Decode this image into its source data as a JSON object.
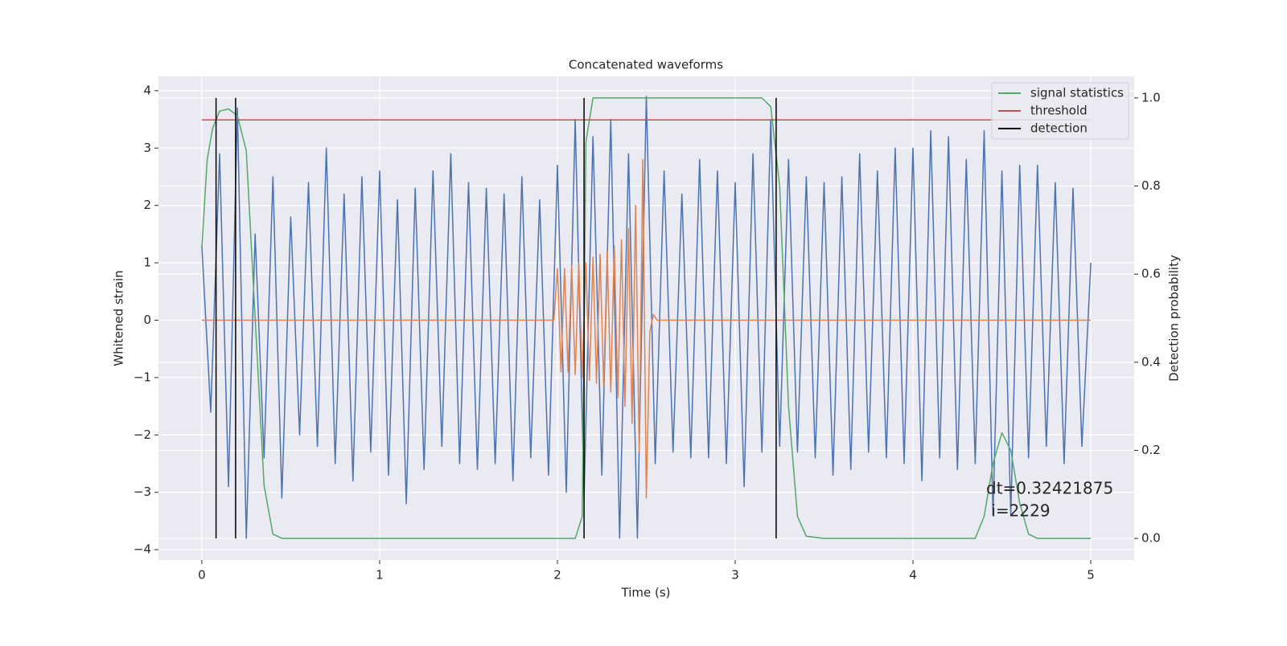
{
  "chart_data": {
    "type": "line",
    "title": "Concatenated waveforms",
    "xlabel": "Time (s)",
    "ylabel": "Whitened strain",
    "y2label": "Detection probability",
    "xlim": [
      -0.244,
      5.244
    ],
    "ylim": [
      -4.18,
      4.25
    ],
    "y2lim": [
      -0.049,
      1.049
    ],
    "xticks": [
      0,
      1,
      2,
      3,
      4,
      5
    ],
    "yticks": [
      {
        "value": -4,
        "label": "−4"
      },
      {
        "value": -3,
        "label": "−3"
      },
      {
        "value": -2,
        "label": "−2"
      },
      {
        "value": -1,
        "label": "−1"
      },
      0,
      1,
      2,
      3,
      4
    ],
    "y2ticks": [
      {
        "value": 0,
        "label": "0.0"
      },
      0.2,
      0.4,
      0.6,
      0.8,
      {
        "value": 1,
        "label": "1.0"
      }
    ],
    "grid": true,
    "background": "#eaeaf2",
    "legend_loc": "upper right",
    "annotations": [
      "dt=0.32421875",
      " i=2229"
    ],
    "series": [
      {
        "color": "#4c72b0",
        "x": [
          0,
          0.05,
          0.1,
          0.15,
          0.2,
          0.25,
          0.3,
          0.35,
          0.4,
          0.45,
          0.5,
          0.55,
          0.6,
          0.65,
          0.7,
          0.75,
          0.8,
          0.85,
          0.9,
          0.95,
          1.0,
          1.05,
          1.1,
          1.15,
          1.2,
          1.25,
          1.3,
          1.35,
          1.4,
          1.45,
          1.5,
          1.55,
          1.6,
          1.65,
          1.7,
          1.75,
          1.8,
          1.85,
          1.9,
          1.95,
          2.0,
          2.05,
          2.1,
          2.15,
          2.2,
          2.25,
          2.3,
          2.35,
          2.4,
          2.45,
          2.5,
          2.55,
          2.6,
          2.65,
          2.7,
          2.75,
          2.8,
          2.85,
          2.9,
          2.95,
          3.0,
          3.05,
          3.1,
          3.15,
          3.2,
          3.25,
          3.3,
          3.35,
          3.4,
          3.45,
          3.5,
          3.55,
          3.6,
          3.65,
          3.7,
          3.75,
          3.8,
          3.85,
          3.9,
          3.95,
          4.0,
          4.05,
          4.1,
          4.15,
          4.2,
          4.25,
          4.3,
          4.35,
          4.4,
          4.45,
          4.5,
          4.55,
          4.6,
          4.65,
          4.7,
          4.75,
          4.8,
          4.85,
          4.9,
          4.95,
          5.0
        ],
        "values": [
          1.3,
          -1.6,
          2.9,
          -2.9,
          3.7,
          -3.8,
          1.5,
          -2.4,
          2.5,
          -3.1,
          1.8,
          -2.0,
          2.4,
          -2.2,
          3.0,
          -2.5,
          2.2,
          -2.8,
          2.5,
          -2.3,
          2.6,
          -2.7,
          2.1,
          -3.2,
          2.3,
          -2.6,
          2.6,
          -2.2,
          2.9,
          -2.5,
          2.4,
          -2.6,
          2.3,
          -2.5,
          2.2,
          -2.8,
          2.5,
          -2.4,
          2.1,
          -2.7,
          2.7,
          -3.0,
          3.5,
          -3.1,
          3.2,
          -2.7,
          3.5,
          -3.8,
          2.9,
          -3.8,
          3.9,
          -2.5,
          2.6,
          -2.3,
          2.2,
          -2.4,
          2.8,
          -2.4,
          2.6,
          -2.5,
          2.4,
          -2.9,
          2.9,
          -2.3,
          3.5,
          -2.2,
          2.8,
          -2.3,
          2.5,
          -2.4,
          2.4,
          -2.7,
          2.5,
          -2.6,
          2.9,
          -2.3,
          2.6,
          -2.4,
          3.0,
          -2.5,
          3.0,
          -2.8,
          3.3,
          -2.4,
          3.2,
          -2.6,
          2.8,
          -2.5,
          3.3,
          -3.4,
          2.6,
          -3.4,
          2.7,
          -2.4,
          2.7,
          -2.2,
          2.4,
          -2.5,
          2.3,
          -2.2,
          1.0
        ]
      },
      {
        "color": "#dd8452",
        "x": [
          0,
          1.98,
          2.0,
          2.02,
          2.04,
          2.06,
          2.08,
          2.1,
          2.12,
          2.14,
          2.16,
          2.18,
          2.2,
          2.22,
          2.24,
          2.26,
          2.28,
          2.3,
          2.32,
          2.34,
          2.36,
          2.38,
          2.4,
          2.42,
          2.44,
          2.46,
          2.48,
          2.5,
          2.52,
          2.54,
          2.56,
          5.0
        ],
        "values": [
          0,
          0,
          0.9,
          -0.9,
          0.9,
          -0.9,
          0.95,
          -0.95,
          1.0,
          -1.0,
          1.0,
          -1.05,
          1.1,
          -1.1,
          1.15,
          -1.15,
          1.2,
          -1.25,
          1.3,
          -1.35,
          1.4,
          -1.5,
          1.6,
          -1.8,
          2.0,
          -2.3,
          2.8,
          -3.1,
          -0.2,
          0.1,
          0,
          0
        ]
      },
      {
        "name": "signal statistics",
        "color": "#55a868",
        "axis": "y2",
        "x": [
          0,
          0.03,
          0.06,
          0.1,
          0.15,
          0.2,
          0.25,
          0.3,
          0.35,
          0.4,
          0.45,
          2.1,
          2.14,
          2.16,
          2.2,
          3.15,
          3.2,
          3.25,
          3.3,
          3.35,
          3.4,
          3.5,
          4.35,
          4.4,
          4.45,
          4.5,
          4.55,
          4.6,
          4.65,
          4.7,
          5.0
        ],
        "values": [
          0.66,
          0.86,
          0.93,
          0.97,
          0.975,
          0.96,
          0.88,
          0.5,
          0.12,
          0.01,
          0,
          0,
          0.05,
          0.9,
          1.0,
          1.0,
          0.98,
          0.8,
          0.3,
          0.05,
          0.005,
          0,
          0,
          0.05,
          0.17,
          0.24,
          0.2,
          0.08,
          0.01,
          0,
          0
        ]
      },
      {
        "name": "threshold",
        "color": "#c44e52",
        "axis": "y2",
        "x": [
          0,
          5
        ],
        "values": [
          0.95,
          0.95
        ]
      },
      {
        "name": "detection",
        "color": "#000000",
        "axis": "y2",
        "x": [
          0.08,
          0.08,
          null,
          0.19,
          0.19,
          null,
          2.15,
          2.15,
          null,
          3.23,
          3.23
        ],
        "values": [
          0,
          1,
          null,
          0,
          1,
          null,
          0,
          1,
          null,
          0,
          1
        ]
      }
    ]
  }
}
